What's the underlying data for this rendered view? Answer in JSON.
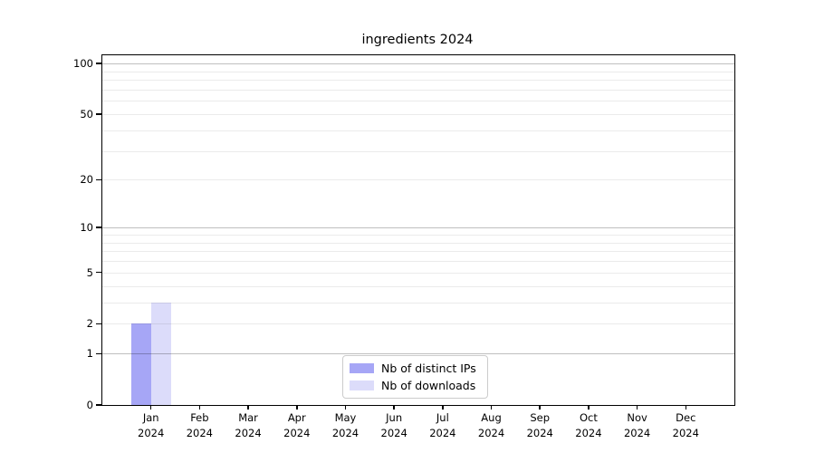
{
  "chart_data": {
    "type": "bar",
    "title": "ingredients 2024",
    "categories": [
      [
        "Jan",
        "2024"
      ],
      [
        "Feb",
        "2024"
      ],
      [
        "Mar",
        "2024"
      ],
      [
        "Apr",
        "2024"
      ],
      [
        "May",
        "2024"
      ],
      [
        "Jun",
        "2024"
      ],
      [
        "Jul",
        "2024"
      ],
      [
        "Aug",
        "2024"
      ],
      [
        "Sep",
        "2024"
      ],
      [
        "Oct",
        "2024"
      ],
      [
        "Nov",
        "2024"
      ],
      [
        "Dec",
        "2024"
      ]
    ],
    "series": [
      {
        "name": "Nb of distinct IPs",
        "color": "#a6a6f6",
        "values": [
          2,
          0,
          0,
          0,
          0,
          0,
          0,
          0,
          0,
          0,
          0,
          0
        ]
      },
      {
        "name": "Nb of downloads",
        "color": "#dcdcfa",
        "values": [
          3,
          0,
          0,
          0,
          0,
          0,
          0,
          0,
          0,
          0,
          0,
          0
        ]
      }
    ],
    "y_axis": {
      "scale": "log1p",
      "tick_values": [
        0,
        1,
        2,
        5,
        10,
        20,
        50,
        100
      ],
      "range": [
        0,
        112
      ]
    },
    "grid": {
      "major_values": [
        1,
        10,
        100
      ],
      "minor_values": [
        2,
        3,
        4,
        5,
        6,
        7,
        8,
        9,
        20,
        30,
        40,
        50,
        60,
        70,
        80,
        90
      ]
    },
    "legend": {
      "position": "lower center"
    },
    "colors": {
      "spine": "#000000",
      "grid_major": "#c0c0c0",
      "grid_minor": "#ebebeb",
      "legend_border": "#cccccc"
    }
  }
}
